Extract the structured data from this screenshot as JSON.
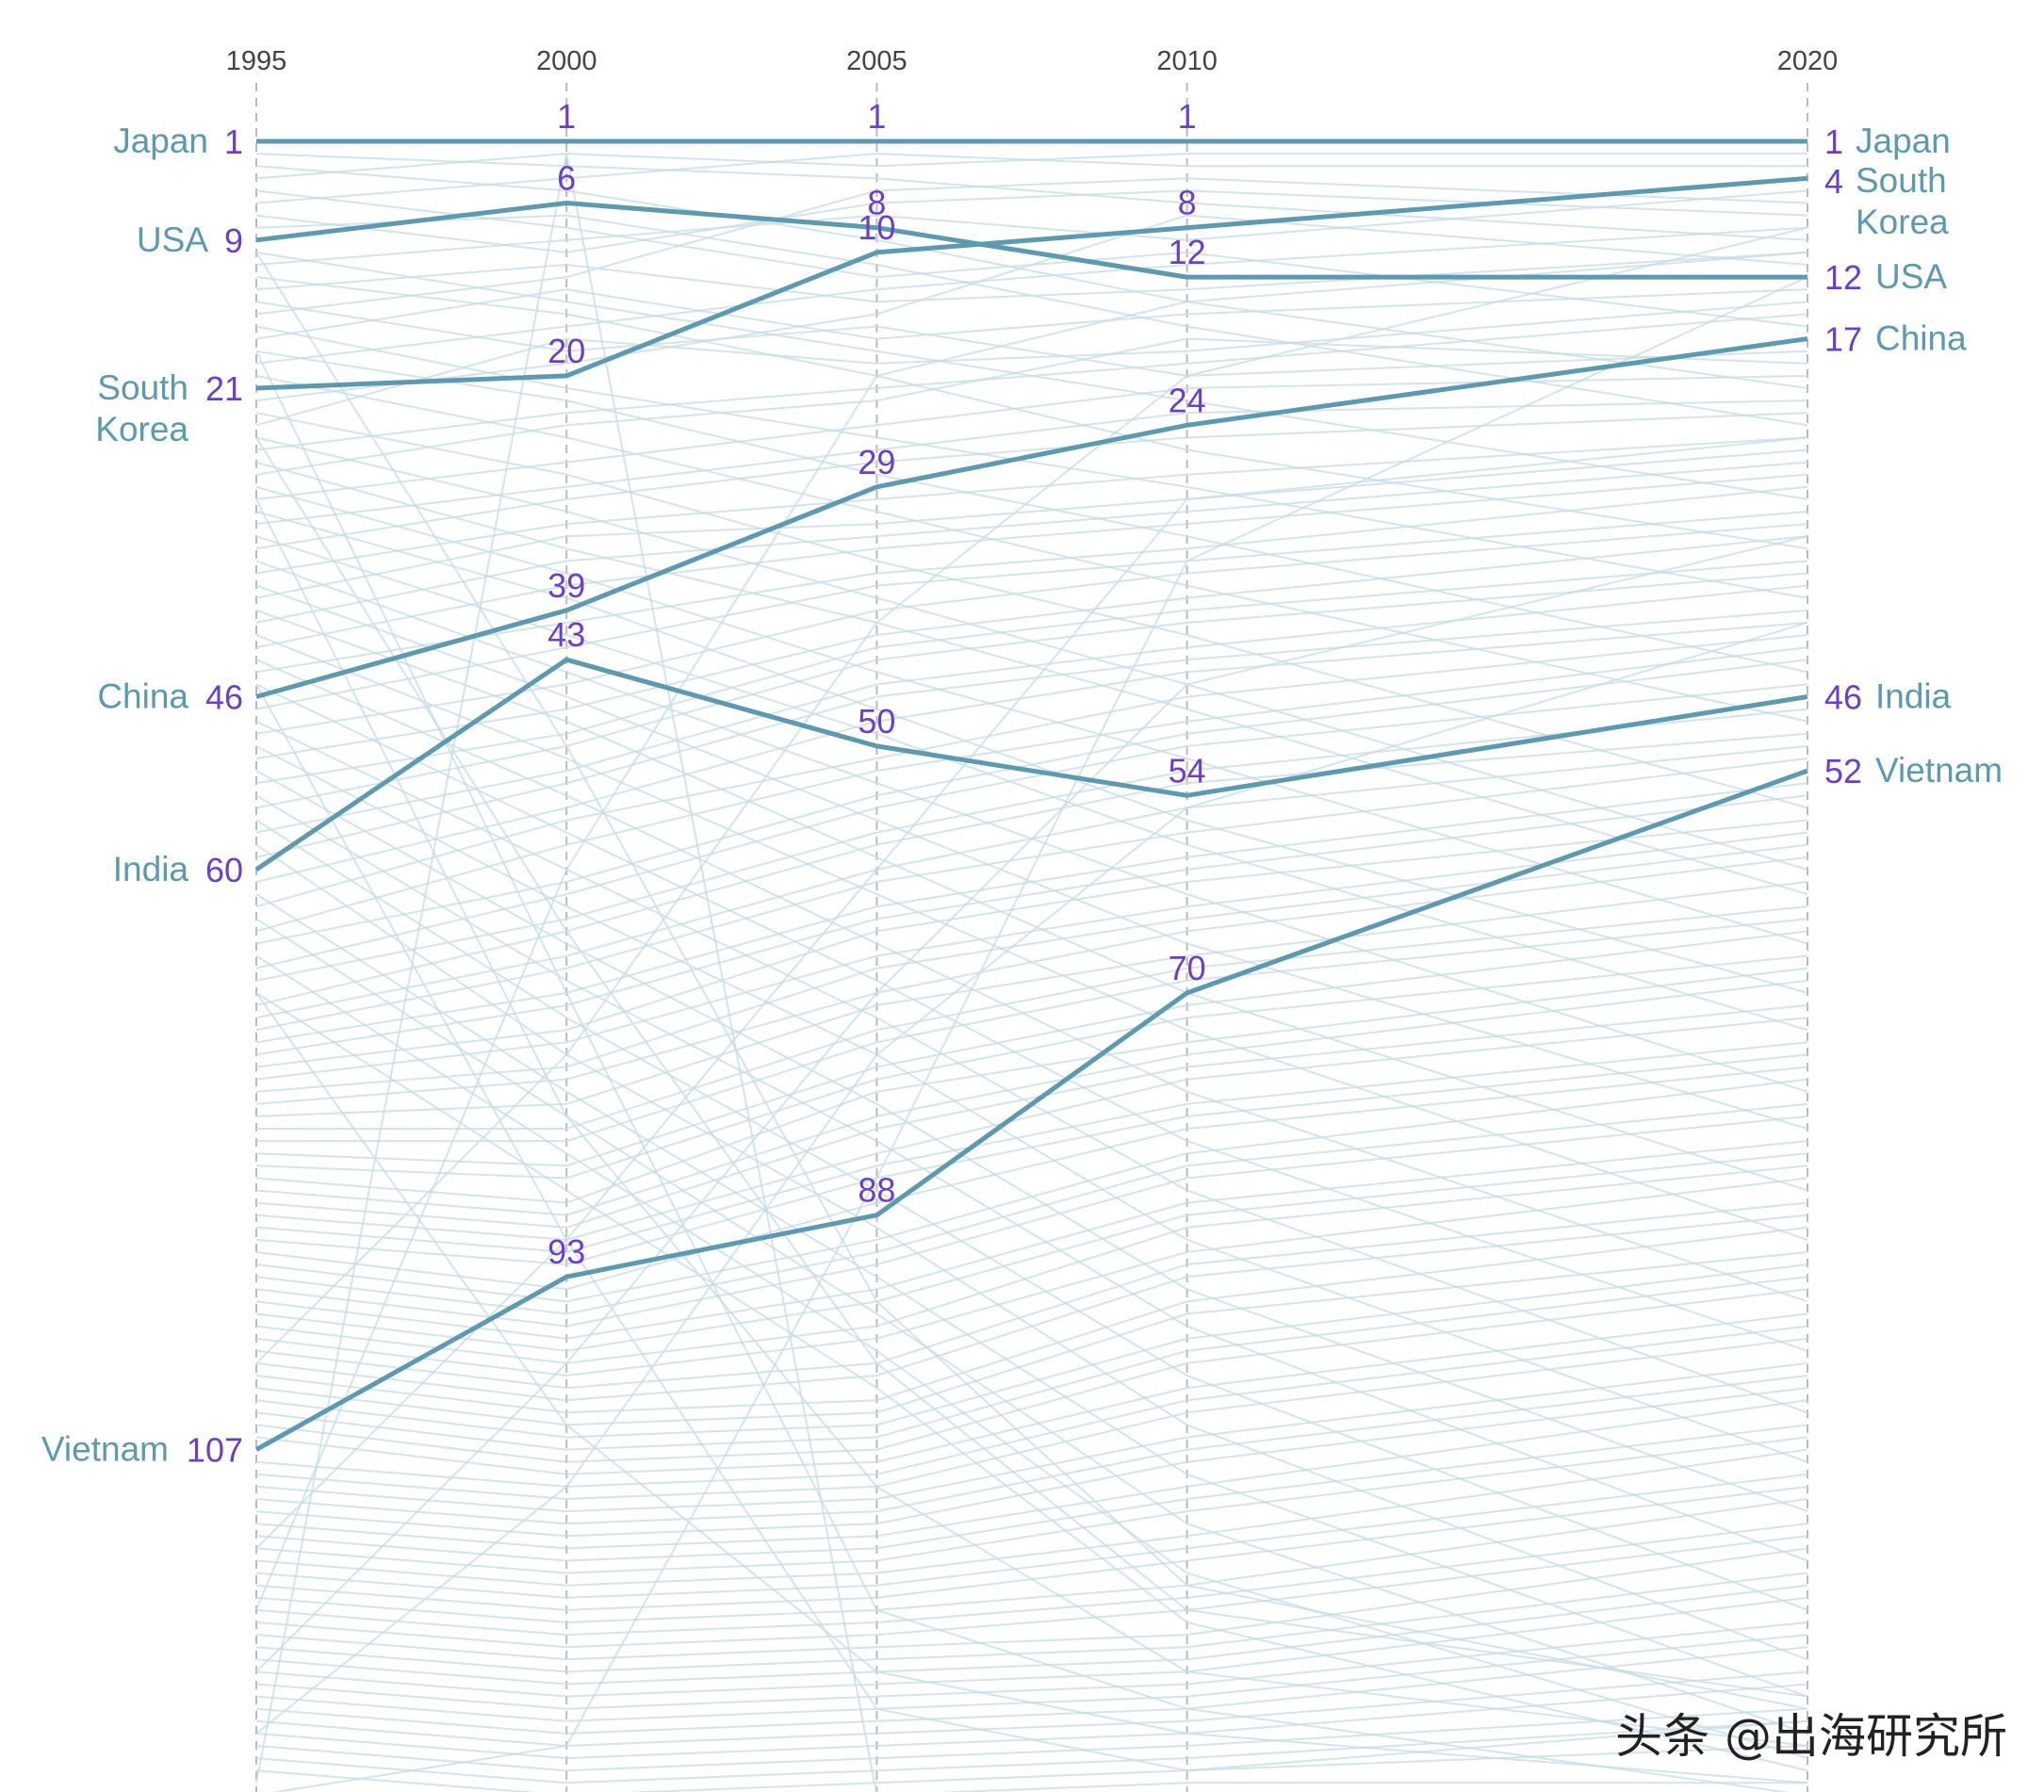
{
  "chart_data": {
    "type": "line",
    "subtype": "rank bump chart",
    "title": "",
    "xlabel": "",
    "ylabel": "",
    "x": [
      1995,
      2000,
      2005,
      2010,
      2020
    ],
    "x_tick_labels": [
      "1995",
      "2000",
      "2005",
      "2010",
      "2020"
    ],
    "y_rank_range": [
      1,
      135
    ],
    "y_inverted": true,
    "grid": "vertical dashed at each year",
    "highlight_series": [
      {
        "name": "Japan",
        "left_label": "Japan",
        "right_label": "Japan",
        "ranks": [
          1,
          1,
          1,
          1,
          1
        ]
      },
      {
        "name": "USA",
        "left_label": "USA",
        "right_label": "USA",
        "ranks": [
          9,
          6,
          8,
          12,
          12
        ]
      },
      {
        "name": "South Korea",
        "left_label": "South Korea",
        "right_label": "South Korea",
        "ranks": [
          21,
          20,
          10,
          8,
          4
        ]
      },
      {
        "name": "China",
        "left_label": "China",
        "right_label": "China",
        "ranks": [
          46,
          39,
          29,
          24,
          17
        ]
      },
      {
        "name": "India",
        "left_label": "India",
        "right_label": "India",
        "ranks": [
          60,
          43,
          50,
          54,
          46
        ]
      },
      {
        "name": "Vietnam",
        "left_label": "Vietnam",
        "right_label": "Vietnam",
        "ranks": [
          107,
          93,
          88,
          70,
          52
        ]
      }
    ],
    "background_series": [
      [
        2,
        3,
        4,
        6,
        9
      ],
      [
        3,
        5,
        9,
        14,
        21
      ],
      [
        4,
        2,
        3,
        2,
        2
      ],
      [
        5,
        8,
        12,
        10,
        16
      ],
      [
        6,
        4,
        2,
        3,
        3
      ],
      [
        7,
        10,
        6,
        5,
        7
      ],
      [
        8,
        7,
        11,
        16,
        24
      ],
      [
        10,
        14,
        18,
        22,
        30
      ],
      [
        11,
        9,
        7,
        9,
        5
      ],
      [
        12,
        15,
        20,
        26,
        34
      ],
      [
        13,
        11,
        14,
        13,
        10
      ],
      [
        14,
        18,
        16,
        20,
        18
      ],
      [
        15,
        12,
        5,
        4,
        6
      ],
      [
        16,
        21,
        25,
        29,
        38
      ],
      [
        17,
        13,
        17,
        15,
        13
      ],
      [
        18,
        22,
        28,
        33,
        44
      ],
      [
        19,
        16,
        13,
        11,
        8
      ],
      [
        20,
        25,
        31,
        37,
        48
      ],
      [
        22,
        19,
        15,
        7,
        11
      ],
      [
        23,
        28,
        35,
        41,
        55
      ],
      [
        24,
        17,
        19,
        18,
        14
      ],
      [
        25,
        31,
        38,
        45,
        60
      ],
      [
        26,
        23,
        21,
        19,
        15
      ],
      [
        27,
        34,
        40,
        47,
        62
      ],
      [
        28,
        24,
        22,
        17,
        19
      ],
      [
        29,
        36,
        44,
        51,
        66
      ],
      [
        30,
        27,
        24,
        21,
        20
      ],
      [
        31,
        38,
        47,
        56,
        70
      ],
      [
        32,
        29,
        26,
        23,
        22
      ],
      [
        33,
        41,
        49,
        58,
        73
      ],
      [
        34,
        30,
        27,
        25,
        23
      ],
      [
        35,
        44,
        53,
        62,
        78
      ],
      [
        36,
        32,
        30,
        28,
        25
      ],
      [
        37,
        46,
        56,
        66,
        81
      ],
      [
        38,
        33,
        32,
        30,
        26
      ],
      [
        39,
        48,
        59,
        70,
        86
      ],
      [
        40,
        35,
        33,
        31,
        27
      ],
      [
        41,
        51,
        62,
        73,
        90
      ],
      [
        42,
        37,
        34,
        32,
        28
      ],
      [
        43,
        54,
        66,
        78,
        95
      ],
      [
        44,
        40,
        36,
        34,
        29
      ],
      [
        45,
        57,
        69,
        82,
        99
      ],
      [
        47,
        42,
        37,
        35,
        31
      ],
      [
        48,
        60,
        72,
        86,
        104
      ],
      [
        49,
        45,
        39,
        36,
        32
      ],
      [
        50,
        63,
        75,
        90,
        108
      ],
      [
        51,
        47,
        41,
        38,
        33
      ],
      [
        52,
        66,
        79,
        94,
        112
      ],
      [
        53,
        49,
        42,
        39,
        35
      ],
      [
        54,
        69,
        82,
        97,
        116
      ],
      [
        55,
        50,
        43,
        40,
        36
      ],
      [
        56,
        72,
        86,
        101,
        120
      ],
      [
        57,
        52,
        45,
        42,
        37
      ],
      [
        58,
        75,
        89,
        105,
        124
      ],
      [
        59,
        53,
        46,
        43,
        39
      ],
      [
        61,
        55,
        48,
        44,
        40
      ],
      [
        62,
        78,
        93,
        109,
        127
      ],
      [
        63,
        56,
        51,
        46,
        41
      ],
      [
        64,
        80,
        96,
        113,
        130
      ],
      [
        65,
        58,
        52,
        48,
        42
      ],
      [
        66,
        61,
        54,
        49,
        43
      ],
      [
        67,
        83,
        99,
        117,
        132
      ],
      [
        68,
        62,
        55,
        50,
        45
      ],
      [
        69,
        64,
        57,
        52,
        47
      ],
      [
        70,
        86,
        102,
        121,
        133
      ],
      [
        71,
        65,
        58,
        53,
        49
      ],
      [
        72,
        67,
        60,
        55,
        50
      ],
      [
        73,
        68,
        61,
        57,
        51
      ],
      [
        74,
        70,
        63,
        59,
        53
      ],
      [
        75,
        71,
        64,
        60,
        54
      ],
      [
        76,
        73,
        65,
        61,
        56
      ],
      [
        77,
        74,
        67,
        63,
        57
      ],
      [
        78,
        76,
        68,
        64,
        58
      ],
      [
        79,
        77,
        70,
        65,
        59
      ],
      [
        80,
        79,
        71,
        67,
        61
      ],
      [
        81,
        81,
        73,
        68,
        63
      ],
      [
        82,
        82,
        74,
        69,
        64
      ],
      [
        83,
        84,
        76,
        71,
        65
      ],
      [
        84,
        85,
        77,
        72,
        67
      ],
      [
        85,
        87,
        78,
        74,
        68
      ],
      [
        86,
        88,
        80,
        75,
        69
      ],
      [
        87,
        89,
        81,
        76,
        71
      ],
      [
        88,
        90,
        83,
        77,
        72
      ],
      [
        89,
        91,
        84,
        79,
        74
      ],
      [
        90,
        92,
        85,
        80,
        75
      ],
      [
        91,
        94,
        87,
        81,
        76
      ],
      [
        92,
        95,
        90,
        83,
        77
      ],
      [
        93,
        96,
        91,
        84,
        79
      ],
      [
        94,
        97,
        92,
        85,
        80
      ],
      [
        95,
        98,
        94,
        87,
        82
      ],
      [
        96,
        99,
        95,
        88,
        83
      ],
      [
        97,
        100,
        97,
        89,
        84
      ],
      [
        98,
        101,
        98,
        91,
        85
      ],
      [
        99,
        102,
        100,
        92,
        87
      ],
      [
        100,
        103,
        101,
        93,
        88
      ],
      [
        101,
        104,
        103,
        95,
        89
      ],
      [
        102,
        105,
        104,
        96,
        91
      ],
      [
        103,
        106,
        105,
        98,
        92
      ],
      [
        104,
        107,
        106,
        99,
        93
      ],
      [
        105,
        108,
        107,
        100,
        94
      ],
      [
        106,
        109,
        108,
        102,
        96
      ],
      [
        108,
        110,
        109,
        103,
        97
      ],
      [
        109,
        111,
        110,
        104,
        98
      ],
      [
        110,
        112,
        111,
        106,
        100
      ],
      [
        111,
        113,
        112,
        107,
        101
      ],
      [
        112,
        114,
        113,
        108,
        102
      ],
      [
        113,
        115,
        114,
        110,
        103
      ],
      [
        114,
        116,
        115,
        111,
        105
      ],
      [
        115,
        117,
        116,
        112,
        106
      ],
      [
        116,
        118,
        117,
        114,
        107
      ],
      [
        117,
        119,
        118,
        115,
        109
      ],
      [
        118,
        120,
        119,
        116,
        110
      ],
      [
        119,
        121,
        120,
        118,
        111
      ],
      [
        120,
        122,
        121,
        119,
        113
      ],
      [
        121,
        123,
        122,
        120,
        114
      ],
      [
        122,
        124,
        123,
        122,
        115
      ],
      [
        123,
        125,
        124,
        123,
        117
      ],
      [
        124,
        126,
        125,
        124,
        118
      ],
      [
        125,
        127,
        126,
        125,
        119
      ],
      [
        126,
        128,
        127,
        126,
        121
      ],
      [
        127,
        129,
        128,
        127,
        122
      ],
      [
        128,
        130,
        129,
        128,
        123
      ],
      [
        129,
        131,
        130,
        129,
        125
      ],
      [
        130,
        132,
        131,
        130,
        126
      ],
      [
        131,
        133,
        132,
        131,
        128
      ],
      [
        132,
        134,
        133,
        132,
        129
      ],
      [
        133,
        135,
        134,
        133,
        131
      ],
      [
        134,
        2,
        135,
        134,
        134
      ],
      [
        135,
        131,
        85,
        35,
        12
      ],
      [
        18,
        70,
        120,
        128,
        135
      ],
      [
        100,
        75,
        40,
        20,
        8
      ],
      [
        30,
        80,
        110,
        125,
        131
      ],
      [
        115,
        90,
        60,
        30,
        25
      ],
      [
        10,
        50,
        95,
        118,
        128
      ],
      [
        125,
        100,
        70,
        45,
        33
      ],
      [
        45,
        90,
        128,
        133,
        129
      ],
      [
        120,
        60,
        20,
        14,
        10
      ],
      [
        70,
        105,
        125,
        130,
        134
      ],
      [
        130,
        110,
        75,
        55,
        40
      ],
      [
        25,
        65,
        100,
        120,
        127
      ]
    ],
    "colors": {
      "highlight_line": "#5b9ab0",
      "background_line": "#c6dbe4",
      "rank_text": "#6b3fc8",
      "country_text": "#5b9ab0",
      "year_text": "#444444",
      "gridline": "#bbbbbb"
    }
  },
  "watermark": "头条 @出海研究所"
}
